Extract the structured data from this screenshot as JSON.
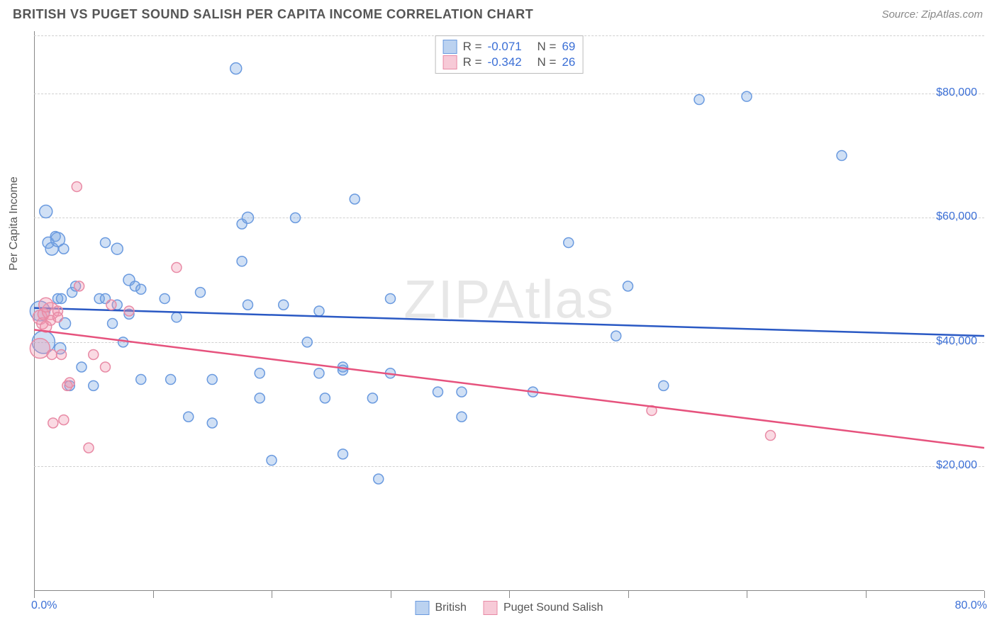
{
  "header": {
    "title": "BRITISH VS PUGET SOUND SALISH PER CAPITA INCOME CORRELATION CHART",
    "source_label": "Source: ZipAtlas.com"
  },
  "chart": {
    "type": "scatter",
    "watermark": "ZIPAtlas",
    "y_label": "Per Capita Income",
    "x_range": [
      0,
      80
    ],
    "y_range": [
      0,
      90000
    ],
    "y_ticks": [
      20000,
      40000,
      60000,
      80000
    ],
    "y_tick_labels": [
      "$20,000",
      "$40,000",
      "$60,000",
      "$80,000"
    ],
    "x_ticks": [
      0,
      10,
      20,
      30,
      40,
      50,
      60,
      70,
      80
    ],
    "x_min_label": "0.0%",
    "x_max_label": "80.0%",
    "grid_color": "#d0d0d0",
    "background_color": "#ffffff",
    "series": [
      {
        "name": "British",
        "fill_color": "rgba(120,165,225,0.35)",
        "stroke_color": "#6a9adf",
        "line_color": "#2a59c4",
        "points": [
          {
            "x": 0.5,
            "y": 45000,
            "r": 14
          },
          {
            "x": 0.8,
            "y": 40000,
            "r": 16
          },
          {
            "x": 1,
            "y": 61000,
            "r": 9
          },
          {
            "x": 1.2,
            "y": 56000,
            "r": 8
          },
          {
            "x": 1.5,
            "y": 55000,
            "r": 9
          },
          {
            "x": 1.8,
            "y": 57000,
            "r": 7
          },
          {
            "x": 2,
            "y": 56500,
            "r": 10
          },
          {
            "x": 2.2,
            "y": 39000,
            "r": 8
          },
          {
            "x": 2.5,
            "y": 55000,
            "r": 7
          },
          {
            "x": 2.6,
            "y": 43000,
            "r": 8
          },
          {
            "x": 2,
            "y": 47000,
            "r": 7
          },
          {
            "x": 2.3,
            "y": 47000,
            "r": 7
          },
          {
            "x": 3,
            "y": 33000,
            "r": 7
          },
          {
            "x": 3.2,
            "y": 48000,
            "r": 7
          },
          {
            "x": 3.5,
            "y": 49000,
            "r": 7
          },
          {
            "x": 4,
            "y": 36000,
            "r": 7
          },
          {
            "x": 5,
            "y": 33000,
            "r": 7
          },
          {
            "x": 5.5,
            "y": 47000,
            "r": 7
          },
          {
            "x": 6,
            "y": 47000,
            "r": 7
          },
          {
            "x": 6,
            "y": 56000,
            "r": 7
          },
          {
            "x": 6.6,
            "y": 43000,
            "r": 7
          },
          {
            "x": 7,
            "y": 46000,
            "r": 7
          },
          {
            "x": 7,
            "y": 55000,
            "r": 8
          },
          {
            "x": 7.5,
            "y": 40000,
            "r": 7
          },
          {
            "x": 8,
            "y": 50000,
            "r": 8
          },
          {
            "x": 8.5,
            "y": 49000,
            "r": 7
          },
          {
            "x": 8,
            "y": 44500,
            "r": 7
          },
          {
            "x": 9,
            "y": 34000,
            "r": 7
          },
          {
            "x": 9,
            "y": 48500,
            "r": 7
          },
          {
            "x": 11,
            "y": 47000,
            "r": 7
          },
          {
            "x": 11.5,
            "y": 34000,
            "r": 7
          },
          {
            "x": 12,
            "y": 44000,
            "r": 7
          },
          {
            "x": 13,
            "y": 28000,
            "r": 7
          },
          {
            "x": 14,
            "y": 48000,
            "r": 7
          },
          {
            "x": 15,
            "y": 34000,
            "r": 7
          },
          {
            "x": 15,
            "y": 27000,
            "r": 7
          },
          {
            "x": 17,
            "y": 84000,
            "r": 8
          },
          {
            "x": 17.5,
            "y": 53000,
            "r": 7
          },
          {
            "x": 17.5,
            "y": 59000,
            "r": 7
          },
          {
            "x": 18,
            "y": 60000,
            "r": 8
          },
          {
            "x": 18,
            "y": 46000,
            "r": 7
          },
          {
            "x": 19,
            "y": 35000,
            "r": 7
          },
          {
            "x": 19,
            "y": 31000,
            "r": 7
          },
          {
            "x": 20,
            "y": 21000,
            "r": 7
          },
          {
            "x": 21,
            "y": 46000,
            "r": 7
          },
          {
            "x": 22,
            "y": 60000,
            "r": 7
          },
          {
            "x": 23,
            "y": 40000,
            "r": 7
          },
          {
            "x": 24,
            "y": 35000,
            "r": 7
          },
          {
            "x": 24,
            "y": 45000,
            "r": 7
          },
          {
            "x": 24.5,
            "y": 31000,
            "r": 7
          },
          {
            "x": 26,
            "y": 36000,
            "r": 7
          },
          {
            "x": 26,
            "y": 35500,
            "r": 7
          },
          {
            "x": 26,
            "y": 22000,
            "r": 7
          },
          {
            "x": 27,
            "y": 63000,
            "r": 7
          },
          {
            "x": 28.5,
            "y": 31000,
            "r": 7
          },
          {
            "x": 29,
            "y": 18000,
            "r": 7
          },
          {
            "x": 30,
            "y": 35000,
            "r": 7
          },
          {
            "x": 30,
            "y": 47000,
            "r": 7
          },
          {
            "x": 34,
            "y": 32000,
            "r": 7
          },
          {
            "x": 36,
            "y": 28000,
            "r": 7
          },
          {
            "x": 36,
            "y": 32000,
            "r": 7
          },
          {
            "x": 42,
            "y": 32000,
            "r": 7
          },
          {
            "x": 45,
            "y": 56000,
            "r": 7
          },
          {
            "x": 49,
            "y": 41000,
            "r": 7
          },
          {
            "x": 50,
            "y": 49000,
            "r": 7
          },
          {
            "x": 53,
            "y": 33000,
            "r": 7
          },
          {
            "x": 56,
            "y": 79000,
            "r": 7
          },
          {
            "x": 60,
            "y": 79500,
            "r": 7
          },
          {
            "x": 68,
            "y": 70000,
            "r": 7
          }
        ],
        "regression": {
          "y1": 45500,
          "y2": 41000
        }
      },
      {
        "name": "Puget Sound Salish",
        "fill_color": "rgba(240,150,175,0.35)",
        "stroke_color": "#e88aa5",
        "line_color": "#e6527d",
        "points": [
          {
            "x": 0.5,
            "y": 44000,
            "r": 10
          },
          {
            "x": 0.5,
            "y": 39000,
            "r": 14
          },
          {
            "x": 0.7,
            "y": 43000,
            "r": 8
          },
          {
            "x": 0.8,
            "y": 44500,
            "r": 8
          },
          {
            "x": 1,
            "y": 42500,
            "r": 8
          },
          {
            "x": 1.4,
            "y": 45000,
            "r": 12
          },
          {
            "x": 1,
            "y": 46000,
            "r": 10
          },
          {
            "x": 1.4,
            "y": 43500,
            "r": 7
          },
          {
            "x": 1.5,
            "y": 38000,
            "r": 7
          },
          {
            "x": 1.6,
            "y": 27000,
            "r": 7
          },
          {
            "x": 2,
            "y": 45000,
            "r": 7
          },
          {
            "x": 2,
            "y": 44000,
            "r": 7
          },
          {
            "x": 2.3,
            "y": 38000,
            "r": 7
          },
          {
            "x": 2.5,
            "y": 27500,
            "r": 7
          },
          {
            "x": 2.8,
            "y": 33000,
            "r": 7
          },
          {
            "x": 3,
            "y": 33500,
            "r": 7
          },
          {
            "x": 3.6,
            "y": 65000,
            "r": 7
          },
          {
            "x": 3.8,
            "y": 49000,
            "r": 7
          },
          {
            "x": 4.6,
            "y": 23000,
            "r": 7
          },
          {
            "x": 5,
            "y": 38000,
            "r": 7
          },
          {
            "x": 6,
            "y": 36000,
            "r": 7
          },
          {
            "x": 6.5,
            "y": 46000,
            "r": 7
          },
          {
            "x": 8,
            "y": 45000,
            "r": 7
          },
          {
            "x": 12,
            "y": 52000,
            "r": 7
          },
          {
            "x": 52,
            "y": 29000,
            "r": 7
          },
          {
            "x": 62,
            "y": 25000,
            "r": 7
          }
        ],
        "regression": {
          "y1": 42000,
          "y2": 23000
        }
      }
    ],
    "legend_top": [
      {
        "swatch_fill": "rgba(120,165,225,0.5)",
        "swatch_stroke": "#6a9adf",
        "r_label": "R =",
        "r_val": "-0.071",
        "n_label": "N =",
        "n_val": "69"
      },
      {
        "swatch_fill": "rgba(240,150,175,0.5)",
        "swatch_stroke": "#e88aa5",
        "r_label": "R =",
        "r_val": "-0.342",
        "n_label": "N =",
        "n_val": "26"
      }
    ],
    "legend_bottom": [
      {
        "swatch_fill": "rgba(120,165,225,0.5)",
        "swatch_stroke": "#6a9adf",
        "label": "British"
      },
      {
        "swatch_fill": "rgba(240,150,175,0.5)",
        "swatch_stroke": "#e88aa5",
        "label": "Puget Sound Salish"
      }
    ]
  }
}
